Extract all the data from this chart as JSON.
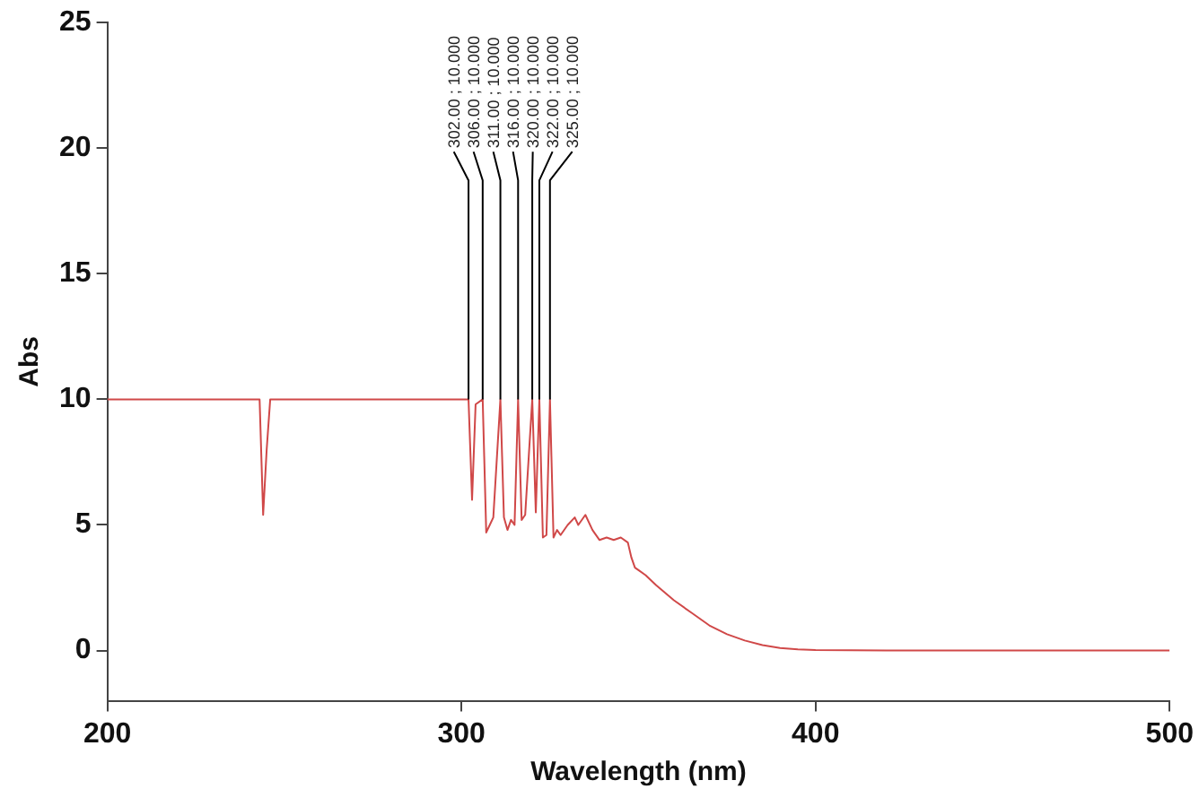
{
  "chart_data": {
    "type": "line",
    "xlabel": "Wavelength (nm)",
    "ylabel": "Abs",
    "x": [
      200,
      243,
      244,
      245,
      246,
      300,
      302,
      303,
      304,
      306,
      307,
      308,
      309,
      311,
      312,
      313,
      314,
      315,
      316,
      317,
      318,
      320,
      321,
      322,
      323,
      324,
      325,
      326,
      327,
      328,
      330,
      332,
      333,
      335,
      337,
      339,
      341,
      343,
      345,
      347,
      348,
      349,
      350,
      352,
      355,
      360,
      365,
      370,
      375,
      380,
      385,
      390,
      395,
      400,
      420,
      460,
      500
    ],
    "series": [
      {
        "color": "#d04848",
        "values": [
          10,
          10,
          5.4,
          8,
          10,
          10,
          10,
          6.0,
          9.8,
          10,
          4.7,
          5.0,
          5.3,
          10,
          5.3,
          4.8,
          5.2,
          5.0,
          10,
          5.2,
          5.4,
          10,
          5.5,
          10,
          4.5,
          4.6,
          10,
          4.5,
          4.8,
          4.6,
          5.0,
          5.3,
          5.0,
          5.4,
          4.8,
          4.4,
          4.5,
          4.4,
          4.5,
          4.3,
          3.7,
          3.3,
          3.2,
          3.0,
          2.6,
          2.0,
          1.5,
          1.0,
          0.65,
          0.4,
          0.22,
          0.1,
          0.05,
          0.02,
          0,
          0,
          0
        ]
      }
    ],
    "xlim": [
      200,
      500
    ],
    "xticks": [
      200,
      300,
      400,
      500
    ],
    "ylim": [
      -2,
      25
    ],
    "yticks": [
      0,
      5,
      10,
      15,
      20,
      25
    ],
    "grid": false,
    "legend": false,
    "marker": "none",
    "line_style": "solid",
    "annotations": [
      {
        "text": "302.00 ; 10.000",
        "x": 302,
        "y": 10
      },
      {
        "text": "306.00 ; 10.000",
        "x": 306,
        "y": 10
      },
      {
        "text": "311.00 ; 10.000",
        "x": 311,
        "y": 10
      },
      {
        "text": "316.00 ; 10.000",
        "x": 316,
        "y": 10
      },
      {
        "text": "320.00 ; 10.000",
        "x": 320,
        "y": 10
      },
      {
        "text": "322.00 ; 10.000",
        "x": 322,
        "y": 10
      },
      {
        "text": "325.00 ; 10.000",
        "x": 325,
        "y": 10
      }
    ]
  }
}
